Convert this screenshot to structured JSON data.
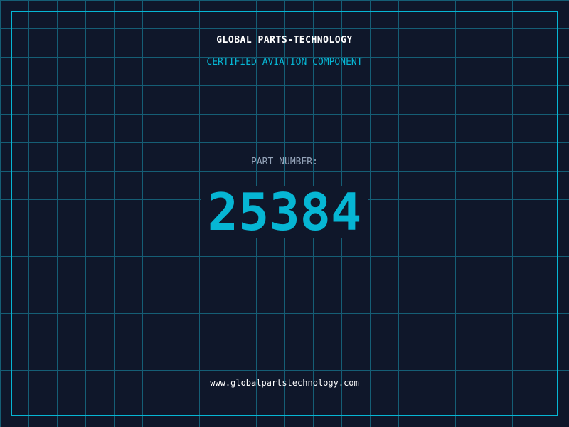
{
  "header": {
    "title": "GLOBAL PARTS-TECHNOLOGY",
    "subtitle": "CERTIFIED AVIATION COMPONENT"
  },
  "part": {
    "label": "PART NUMBER:",
    "number": "25384"
  },
  "footer": {
    "url": "www.globalpartstechnology.com"
  },
  "colors": {
    "background": "#0f172a",
    "accent": "#06b6d4",
    "grid": "#155e75",
    "label": "#94a3b8"
  }
}
